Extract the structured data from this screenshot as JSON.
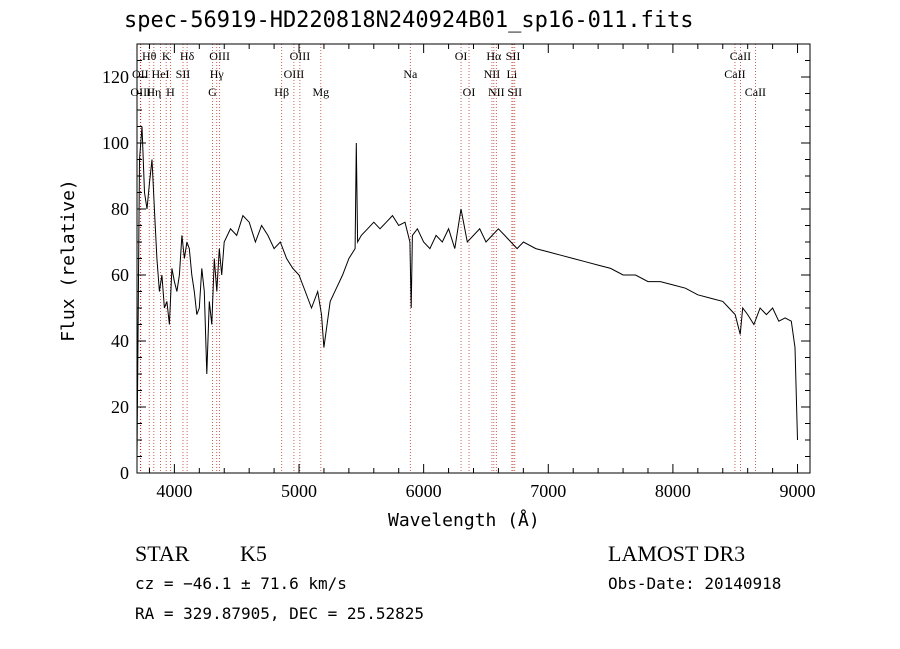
{
  "header": {
    "title": "spec-56919-HD220818N240924B01_sp16-011.fits"
  },
  "info": {
    "class_label": "STAR",
    "subclass_label": "K5",
    "survey": "LAMOST DR3",
    "cz": "cz = −46.1 ± 71.6 km/s",
    "obs_date": "Obs-Date: 20140918",
    "coords": "RA = 329.87905, DEC =  25.52825"
  },
  "chart_data": {
    "type": "line",
    "xlabel": "Wavelength (Å)",
    "ylabel": "Flux (relative)",
    "xlim": [
      3700,
      9100
    ],
    "ylim": [
      0,
      130
    ],
    "xticks": [
      4000,
      5000,
      6000,
      7000,
      8000,
      9000
    ],
    "yticks": [
      0,
      20,
      40,
      60,
      80,
      100,
      120
    ],
    "grid": false,
    "series": [
      {
        "x": [
          3700,
          3720,
          3740,
          3760,
          3780,
          3800,
          3820,
          3840,
          3860,
          3880,
          3900,
          3920,
          3940,
          3960,
          3980,
          4000,
          4020,
          4040,
          4060,
          4080,
          4100,
          4120,
          4140,
          4160,
          4180,
          4200,
          4220,
          4240,
          4260,
          4280,
          4300,
          4320,
          4340,
          4360,
          4380,
          4400,
          4450,
          4500,
          4550,
          4600,
          4650,
          4700,
          4750,
          4800,
          4850,
          4900,
          4950,
          5000,
          5050,
          5100,
          5150,
          5180,
          5200,
          5250,
          5300,
          5350,
          5400,
          5450,
          5460,
          5470,
          5500,
          5550,
          5600,
          5650,
          5700,
          5750,
          5800,
          5850,
          5890,
          5900,
          5910,
          5950,
          6000,
          6050,
          6100,
          6150,
          6200,
          6250,
          6300,
          6350,
          6400,
          6450,
          6500,
          6550,
          6600,
          6650,
          6700,
          6750,
          6800,
          6900,
          7000,
          7100,
          7200,
          7300,
          7400,
          7500,
          7600,
          7700,
          7800,
          7900,
          8000,
          8100,
          8200,
          8300,
          8400,
          8450,
          8500,
          8540,
          8560,
          8600,
          8650,
          8700,
          8750,
          8800,
          8850,
          8900,
          8950,
          8980,
          9000
        ],
        "y": [
          5,
          95,
          105,
          85,
          80,
          88,
          95,
          80,
          65,
          55,
          60,
          50,
          52,
          45,
          62,
          58,
          55,
          60,
          72,
          65,
          70,
          68,
          60,
          55,
          48,
          50,
          62,
          55,
          30,
          52,
          45,
          65,
          55,
          68,
          60,
          70,
          74,
          72,
          78,
          76,
          70,
          75,
          72,
          68,
          70,
          65,
          62,
          60,
          55,
          50,
          55,
          48,
          38,
          52,
          56,
          60,
          65,
          68,
          100,
          70,
          72,
          74,
          76,
          74,
          76,
          78,
          75,
          76,
          70,
          50,
          72,
          74,
          70,
          68,
          72,
          70,
          74,
          68,
          80,
          70,
          72,
          74,
          70,
          72,
          74,
          72,
          70,
          68,
          70,
          68,
          67,
          66,
          65,
          64,
          63,
          62,
          60,
          60,
          58,
          58,
          57,
          56,
          54,
          53,
          52,
          50,
          48,
          42,
          50,
          48,
          45,
          50,
          48,
          50,
          46,
          47,
          46,
          38,
          10
        ]
      }
    ],
    "line_markers": [
      {
        "label": "Hθ",
        "x": 3798,
        "row": 0
      },
      {
        "label": "K",
        "x": 3934,
        "row": 0
      },
      {
        "label": "Hδ",
        "x": 4102,
        "row": 0
      },
      {
        "label": "OIII",
        "x": 4363,
        "row": 0
      },
      {
        "label": "OIII",
        "x": 5007,
        "row": 0
      },
      {
        "label": "OI",
        "x": 6300,
        "row": 0
      },
      {
        "label": "Hα",
        "x": 6563,
        "row": 0
      },
      {
        "label": "SII",
        "x": 6717,
        "row": 0
      },
      {
        "label": "CaII",
        "x": 8542,
        "row": 0
      },
      {
        "label": "OII",
        "x": 3727,
        "row": 1
      },
      {
        "label": "HeI",
        "x": 3889,
        "row": 1
      },
      {
        "label": "SII",
        "x": 4069,
        "row": 1
      },
      {
        "label": "Hγ",
        "x": 4340,
        "row": 1
      },
      {
        "label": "OIII",
        "x": 4959,
        "row": 1
      },
      {
        "label": "Na",
        "x": 5893,
        "row": 1
      },
      {
        "label": "NII",
        "x": 6548,
        "row": 1
      },
      {
        "label": "Li",
        "x": 6708,
        "row": 1
      },
      {
        "label": "CaII",
        "x": 8498,
        "row": 1
      },
      {
        "label": "OIII",
        "x": 3730,
        "row": 2
      },
      {
        "label": "Hη",
        "x": 3835,
        "row": 2
      },
      {
        "label": "H",
        "x": 3968,
        "row": 2
      },
      {
        "label": "G",
        "x": 4305,
        "row": 2
      },
      {
        "label": "Hβ",
        "x": 4861,
        "row": 2
      },
      {
        "label": "Mg",
        "x": 5175,
        "row": 2
      },
      {
        "label": "OI",
        "x": 6364,
        "row": 2
      },
      {
        "label": "NII",
        "x": 6583,
        "row": 2
      },
      {
        "label": "SII",
        "x": 6731,
        "row": 2
      },
      {
        "label": "CaII",
        "x": 8662,
        "row": 2
      }
    ]
  }
}
